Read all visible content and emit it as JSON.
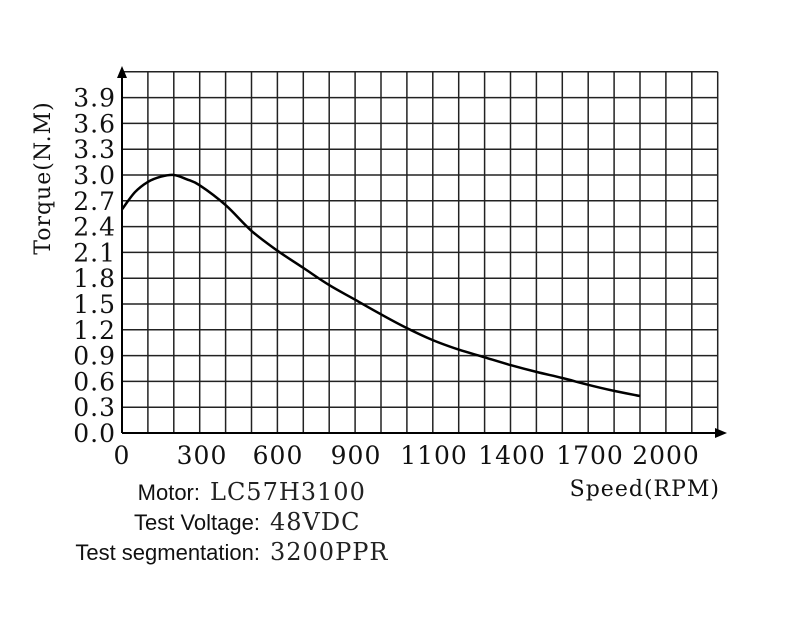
{
  "chart_data": {
    "type": "line",
    "xlabel": "Speed(RPM)",
    "ylabel": "Torque(N.M)",
    "x_tick_labels": [
      "0",
      "300",
      "600",
      "900",
      "1100",
      "1400",
      "1700",
      "2000"
    ],
    "y_tick_labels": [
      "0.0",
      "0.3",
      "0.6",
      "0.9",
      "1.2",
      "1.5",
      "1.8",
      "2.1",
      "2.4",
      "2.7",
      "3.0",
      "3.3",
      "3.6",
      "3.9"
    ],
    "grid": true,
    "series": [
      {
        "x": [
          0,
          50,
          100,
          150,
          200,
          250,
          300,
          400,
          500,
          600,
          700,
          800,
          900,
          1000,
          1100,
          1200,
          1300,
          1400,
          1500,
          1600,
          1700,
          1800,
          1900,
          2000
        ],
        "y": [
          2.6,
          2.8,
          2.92,
          2.98,
          3.0,
          2.95,
          2.88,
          2.65,
          2.35,
          2.12,
          1.92,
          1.72,
          1.55,
          1.38,
          1.22,
          1.08,
          0.97,
          0.88,
          0.79,
          0.71,
          0.64,
          0.56,
          0.49,
          0.43
        ]
      }
    ]
  },
  "specs": {
    "motor_label": "Motor:",
    "motor_value": "LC57H3100",
    "voltage_label": "Test Voltage:",
    "voltage_value": "48VDC",
    "segmentation_label": "Test segmentation:",
    "segmentation_value": "3200PPR"
  }
}
